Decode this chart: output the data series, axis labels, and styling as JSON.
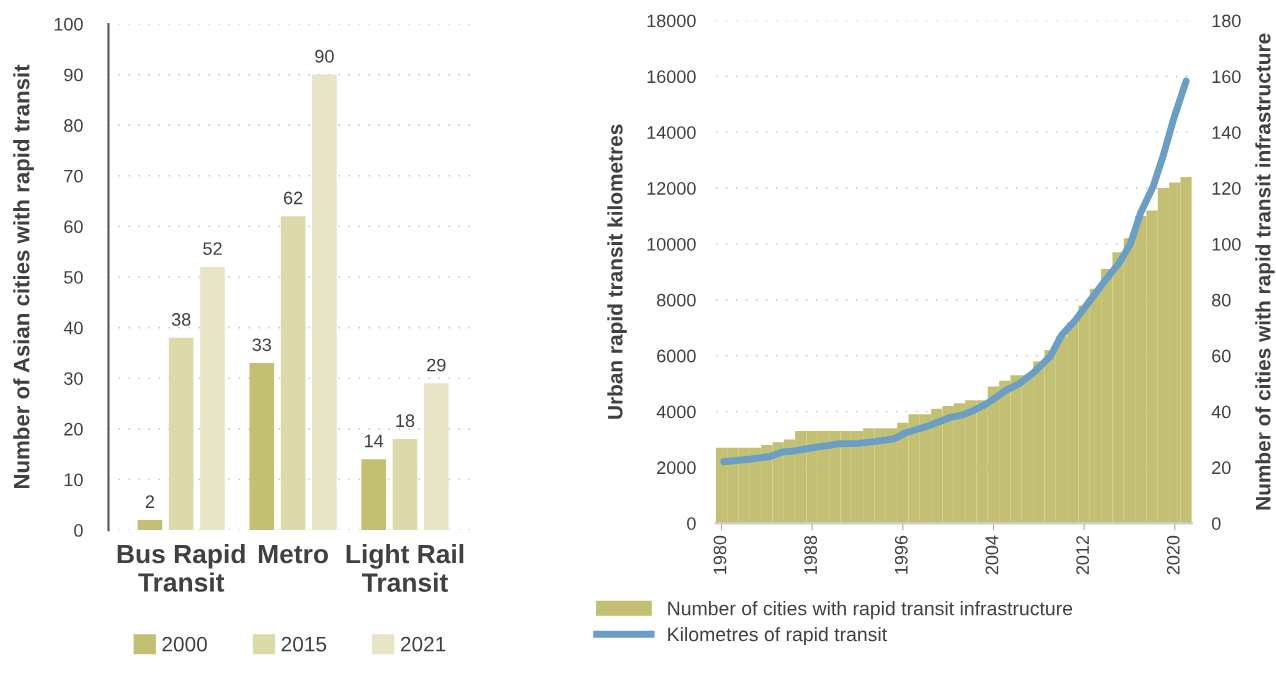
{
  "chart_data": [
    {
      "type": "bar",
      "ylabel": "Number of Asian cities with rapid transit",
      "categories": [
        "Bus Rapid\nTransit",
        "Metro",
        "Light Rail\nTransit"
      ],
      "series": [
        {
          "name": "2000",
          "color": "#c3c074",
          "values": [
            2,
            33,
            14
          ]
        },
        {
          "name": "2015",
          "color": "#dcd9ab",
          "values": [
            38,
            62,
            18
          ]
        },
        {
          "name": "2021",
          "color": "#e7e5c6",
          "values": [
            52,
            90,
            29
          ]
        }
      ],
      "ylim": [
        0,
        100
      ],
      "yticks": [
        0,
        10,
        20,
        30,
        40,
        50,
        60,
        70,
        80,
        90,
        100
      ],
      "grid": "y",
      "legend": "bottom",
      "data_labels": true
    },
    {
      "type": "line",
      "ylabel": "Urban rapid transit kilometres",
      "y2label": "Number of cities with rapid transit infrastructure",
      "series": [
        {
          "name": "Number of cities with rapid transit infrastructure",
          "type": "bar",
          "axis": "y2",
          "color": "#c3c074",
          "x": [
            1980,
            1981,
            1982,
            1983,
            1984,
            1985,
            1986,
            1987,
            1988,
            1989,
            1990,
            1991,
            1992,
            1993,
            1994,
            1995,
            1996,
            1997,
            1998,
            1999,
            2000,
            2001,
            2002,
            2003,
            2004,
            2005,
            2006,
            2007,
            2008,
            2009,
            2010,
            2011,
            2012,
            2013,
            2014,
            2015,
            2016,
            2017,
            2018,
            2019,
            2020,
            2021
          ],
          "values": [
            27,
            27,
            27,
            27,
            28,
            29,
            30,
            33,
            33,
            33,
            33,
            33,
            33,
            34,
            34,
            34,
            36,
            39,
            39,
            41,
            42,
            43,
            44,
            44,
            49,
            51,
            53,
            53,
            58,
            62,
            67,
            72,
            78,
            84,
            91,
            97,
            102,
            110,
            112,
            120,
            122,
            124
          ]
        },
        {
          "name": "Kilometres of rapid transit",
          "type": "line",
          "color": "#6a9ec4",
          "x": [
            1980.2,
            1982.2,
            1984.3,
            1985.4,
            1986.4,
            1988.3,
            1989.4,
            1990.4,
            1992.1,
            1993.6,
            1995.2,
            1996.2,
            1998.3,
            2000.1,
            2001.2,
            2002.2,
            2003.2,
            2004.2,
            2005.1,
            2006.2,
            2007.5,
            2009.0,
            2010.0,
            2011.2,
            2012.4,
            2013.7,
            2015.1,
            2016.1,
            2017.0,
            2018.1,
            2019.0,
            2019.9,
            2021.0
          ],
          "values": [
            2200,
            2280,
            2390,
            2550,
            2590,
            2720,
            2780,
            2850,
            2860,
            2930,
            3020,
            3230,
            3490,
            3780,
            3870,
            4030,
            4230,
            4500,
            4760,
            4980,
            5380,
            5970,
            6730,
            7260,
            7910,
            8610,
            9320,
            10020,
            11130,
            12070,
            13190,
            14480,
            15830
          ]
        }
      ],
      "xlim": [
        1979.5,
        2021.5
      ],
      "xticks": [
        1980,
        1988,
        1996,
        2004,
        2012,
        2020
      ],
      "ylim": [
        0,
        18000
      ],
      "yticks": [
        0,
        2000,
        4000,
        6000,
        8000,
        10000,
        12000,
        14000,
        16000,
        18000
      ],
      "y2lim": [
        0,
        180
      ],
      "y2ticks": [
        0,
        20,
        40,
        60,
        80,
        100,
        120,
        140,
        160,
        180
      ],
      "grid": "y",
      "legend": "bottom"
    }
  ]
}
